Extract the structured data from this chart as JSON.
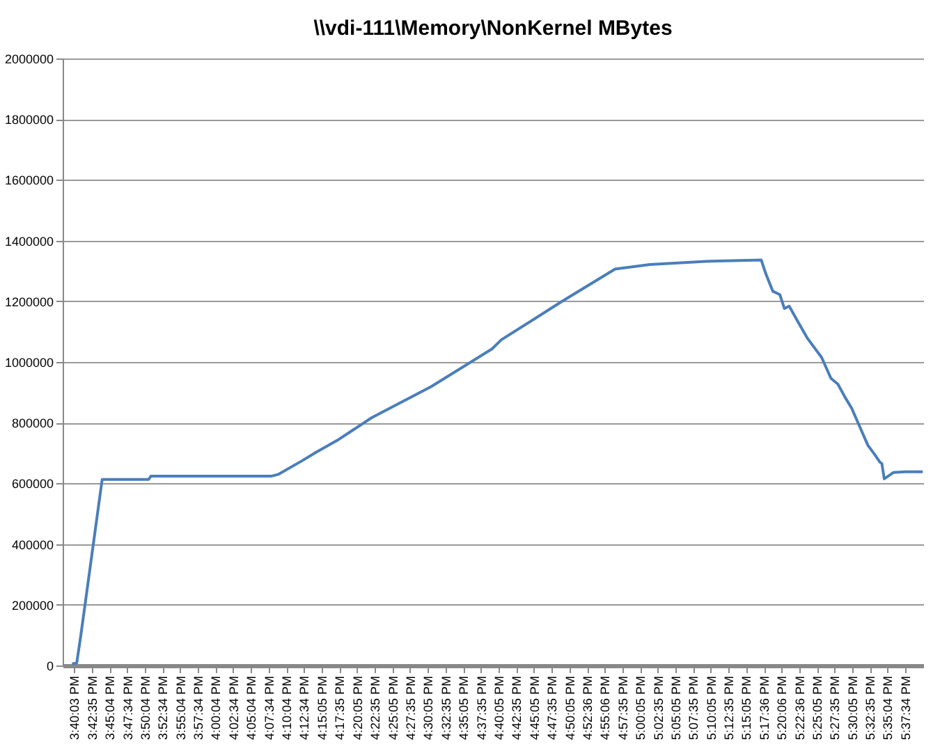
{
  "chart_data": {
    "type": "line",
    "title": "\\\\vdi-111\\Memory\\NonKernel MBytes",
    "x": [
      15.6632,
      15.6741,
      15.6839,
      15.7341,
      15.8437,
      15.8489,
      16.1334,
      16.1498,
      16.2046,
      16.2374,
      16.2918,
      16.3686,
      16.5098,
      16.6527,
      16.6747,
      16.8168,
      16.9428,
      17.0248,
      17.1669,
      17.2872,
      17.2981,
      17.3145,
      17.3309,
      17.3418,
      17.3529,
      17.3746,
      17.3965,
      17.4294,
      17.4514,
      17.4677,
      17.4841,
      17.5005,
      17.5169,
      17.5386,
      17.555,
      17.5661,
      17.5714,
      17.577,
      17.5989,
      17.6261,
      17.6678
    ],
    "series": [
      {
        "color": "#4a7ebb",
        "values": [
          5000,
          8000,
          100000,
          613000,
          613000,
          624000,
          624000,
          630000,
          674000,
          702000,
          745000,
          816000,
          919000,
          1043000,
          1073000,
          1199000,
          1306000,
          1321000,
          1332000,
          1336000,
          1290000,
          1233000,
          1222000,
          1176000,
          1184000,
          1130000,
          1077000,
          1015000,
          946000,
          927000,
          885000,
          847000,
          794000,
          725000,
          694000,
          671000,
          665000,
          615000,
          636000,
          638000,
          638000
        ]
      }
    ],
    "xlim": [
      15.641,
      17.669
    ],
    "xticks": [
      {
        "value": 15.6675,
        "label": "3:40:03 PM"
      },
      {
        "value": 15.70972,
        "label": "3:42:35 PM"
      },
      {
        "value": 15.75111,
        "label": "3:45:04 PM"
      },
      {
        "value": 15.79278,
        "label": "3:47:34 PM"
      },
      {
        "value": 15.83444,
        "label": "3:50:04 PM"
      },
      {
        "value": 15.87611,
        "label": "3:52:34 PM"
      },
      {
        "value": 15.91778,
        "label": "3:55:04 PM"
      },
      {
        "value": 15.95944,
        "label": "3:57:34 PM"
      },
      {
        "value": 16.00111,
        "label": "4:00:04 PM"
      },
      {
        "value": 16.04278,
        "label": "4:02:34 PM"
      },
      {
        "value": 16.08444,
        "label": "4:05:04 PM"
      },
      {
        "value": 16.12611,
        "label": "4:07:34 PM"
      },
      {
        "value": 16.16778,
        "label": "4:10:04 PM"
      },
      {
        "value": 16.20944,
        "label": "4:12:34 PM"
      },
      {
        "value": 16.25139,
        "label": "4:15:05 PM"
      },
      {
        "value": 16.29306,
        "label": "4:17:35 PM"
      },
      {
        "value": 16.33472,
        "label": "4:20:05 PM"
      },
      {
        "value": 16.37639,
        "label": "4:22:35 PM"
      },
      {
        "value": 16.41806,
        "label": "4:25:05 PM"
      },
      {
        "value": 16.45972,
        "label": "4:27:35 PM"
      },
      {
        "value": 16.50139,
        "label": "4:30:05 PM"
      },
      {
        "value": 16.54306,
        "label": "4:32:35 PM"
      },
      {
        "value": 16.58472,
        "label": "4:35:05 PM"
      },
      {
        "value": 16.62639,
        "label": "4:37:35 PM"
      },
      {
        "value": 16.66806,
        "label": "4:40:05 PM"
      },
      {
        "value": 16.70972,
        "label": "4:42:35 PM"
      },
      {
        "value": 16.75139,
        "label": "4:45:05 PM"
      },
      {
        "value": 16.79306,
        "label": "4:47:35 PM"
      },
      {
        "value": 16.83472,
        "label": "4:50:05 PM"
      },
      {
        "value": 16.87667,
        "label": "4:52:36 PM"
      },
      {
        "value": 16.91833,
        "label": "4:55:06 PM"
      },
      {
        "value": 16.95972,
        "label": "4:57:35 PM"
      },
      {
        "value": 17.00139,
        "label": "5:00:05 PM"
      },
      {
        "value": 17.04306,
        "label": "5:02:35 PM"
      },
      {
        "value": 17.08472,
        "label": "5:05:05 PM"
      },
      {
        "value": 17.12639,
        "label": "5:07:35 PM"
      },
      {
        "value": 17.16806,
        "label": "5:10:05 PM"
      },
      {
        "value": 17.20972,
        "label": "5:12:35 PM"
      },
      {
        "value": 17.25139,
        "label": "5:15:05 PM"
      },
      {
        "value": 17.29333,
        "label": "5:17:36 PM"
      },
      {
        "value": 17.335,
        "label": "5:20:06 PM"
      },
      {
        "value": 17.37667,
        "label": "5:22:36 PM"
      },
      {
        "value": 17.41806,
        "label": "5:25:05 PM"
      },
      {
        "value": 17.45972,
        "label": "5:27:35 PM"
      },
      {
        "value": 17.50139,
        "label": "5:30:05 PM"
      },
      {
        "value": 17.54306,
        "label": "5:32:35 PM"
      },
      {
        "value": 17.58444,
        "label": "5:35:04 PM"
      },
      {
        "value": 17.62611,
        "label": "5:37:34 PM"
      }
    ],
    "ylim": [
      0,
      2000000
    ],
    "yticks": [
      0,
      200000,
      400000,
      600000,
      800000,
      1000000,
      1200000,
      1400000,
      1600000,
      1800000,
      2000000
    ],
    "grid": "y",
    "legend": false
  }
}
